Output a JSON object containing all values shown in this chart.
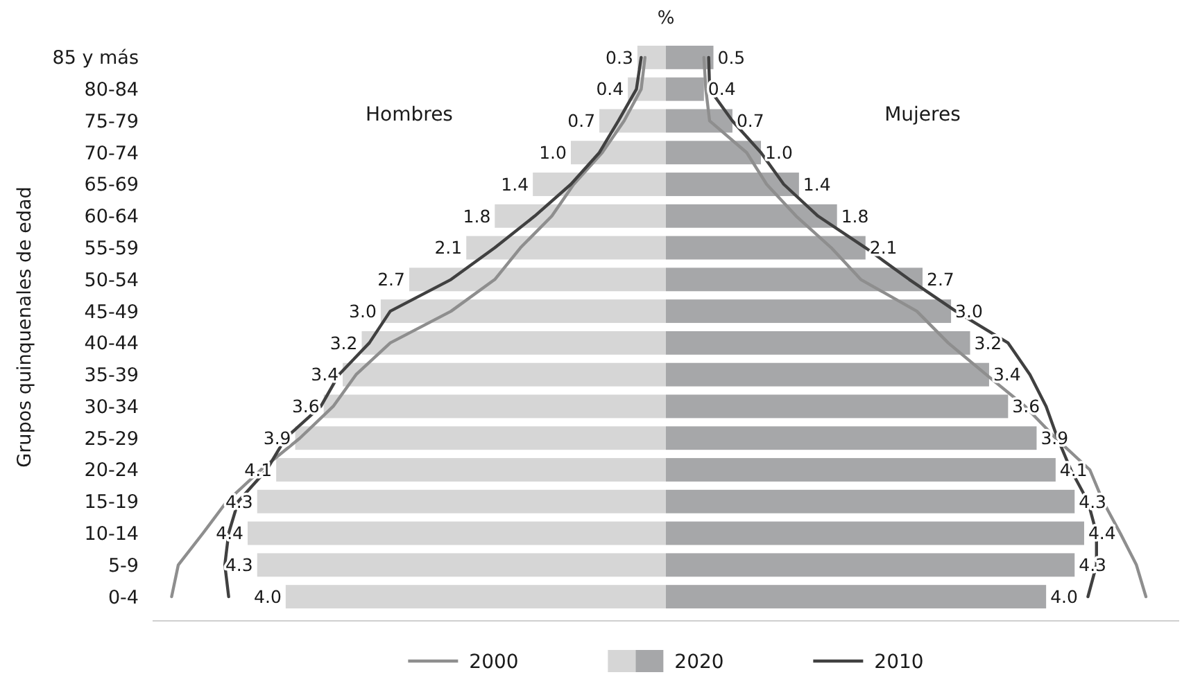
{
  "chart_data": [
    {
      "type": "bar",
      "orientation": "horizontal",
      "xlabel": "%",
      "ylabel": "Grupos quinquenales de edad",
      "categories": [
        "85 y más",
        "80-84",
        "75-79",
        "70-74",
        "65-69",
        "60-64",
        "55-59",
        "50-54",
        "45-49",
        "40-44",
        "35-39",
        "30-34",
        "25-29",
        "20-24",
        "15-19",
        "10-14",
        "5-9",
        "0-4"
      ],
      "xlim": [
        5.4,
        0
      ],
      "tick_labels": "y",
      "grid": false,
      "legend": "bottom",
      "annotations": [
        "Hombres"
      ],
      "series": [
        {
          "name": "2000",
          "type": "line",
          "color": "#8e8e8e",
          "values": [
            0.22,
            0.26,
            0.44,
            0.67,
            0.97,
            1.2,
            1.53,
            1.8,
            2.26,
            2.9,
            3.26,
            3.5,
            3.85,
            4.26,
            4.62,
            4.87,
            5.13,
            5.2
          ]
        },
        {
          "name": "2020",
          "color": "#d6d6d6",
          "values": [
            0.3,
            0.4,
            0.7,
            1.0,
            1.4,
            1.8,
            2.1,
            2.7,
            3.0,
            3.2,
            3.4,
            3.6,
            3.9,
            4.1,
            4.3,
            4.4,
            4.3,
            4.0
          ],
          "value_labels": [
            "0.3",
            "0.4",
            "0.7",
            "1.0",
            "1.4",
            "1.8",
            "2.1",
            "2.7",
            "3.0",
            "3.2",
            "3.4",
            "3.6",
            "3.9",
            "4.1",
            "4.3",
            "4.4",
            "4.3",
            "4.0"
          ]
        },
        {
          "name": "2010",
          "type": "line",
          "color": "#404040",
          "values": [
            0.26,
            0.31,
            0.5,
            0.7,
            1.0,
            1.38,
            1.8,
            2.26,
            2.9,
            3.12,
            3.44,
            3.63,
            4.0,
            4.2,
            4.5,
            4.6,
            4.64,
            4.6
          ]
        }
      ]
    },
    {
      "type": "bar",
      "orientation": "horizontal",
      "categories": [
        null,
        null,
        null,
        null,
        null,
        null,
        null,
        null,
        null,
        null,
        null,
        null,
        null,
        null,
        null,
        null,
        null,
        null
      ],
      "xlim": [
        0,
        5.4
      ],
      "tick_labels": false,
      "grid": false,
      "annotations": [
        "Mujeres"
      ],
      "series": [
        {
          "type": "line",
          "color": "#8e8e8e",
          "values": [
            0.4,
            0.42,
            0.46,
            0.85,
            1.06,
            1.37,
            1.74,
            2.05,
            2.64,
            2.97,
            3.37,
            3.78,
            4.1,
            4.46,
            4.6,
            4.78,
            4.95,
            5.05
          ]
        },
        {
          "color": "#a6a7a9",
          "values": [
            0.5,
            0.4,
            0.7,
            1.0,
            1.4,
            1.8,
            2.1,
            2.7,
            3.0,
            3.2,
            3.4,
            3.6,
            3.9,
            4.1,
            4.3,
            4.4,
            4.3,
            4.0
          ],
          "value_labels": [
            "0.5",
            "0.4",
            "0.7",
            "1.0",
            "1.4",
            "1.8",
            "2.1",
            "2.7",
            "3.0",
            "3.2",
            "3.4",
            "3.6",
            "3.9",
            "4.1",
            "4.3",
            "4.4",
            "4.3",
            "4.0"
          ]
        },
        {
          "type": "line",
          "color": "#404040",
          "values": [
            0.45,
            0.46,
            0.7,
            1.0,
            1.24,
            1.6,
            2.1,
            2.56,
            3.05,
            3.6,
            3.83,
            4.0,
            4.12,
            4.26,
            4.44,
            4.53,
            4.53,
            4.44
          ]
        }
      ]
    }
  ]
}
